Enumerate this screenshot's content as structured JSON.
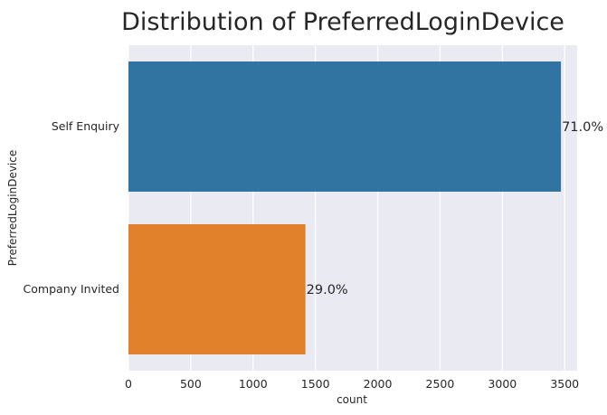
{
  "chart_data": {
    "type": "bar",
    "orientation": "horizontal",
    "title": "Distribution of PreferredLoginDevice",
    "xlabel": "count",
    "ylabel": "PreferredLoginDevice",
    "categories": [
      "Self Enquiry",
      "Company Invited"
    ],
    "values": [
      3470,
      1420
    ],
    "data_labels": [
      "71.0%",
      "29.0%"
    ],
    "colors": [
      "#3274a1",
      "#e1812c"
    ],
    "xlim": [
      0,
      3600
    ],
    "xticks": [
      0,
      500,
      1000,
      1500,
      2000,
      2500,
      3000,
      3500
    ],
    "grid": true,
    "background": "#eaeaf2"
  }
}
